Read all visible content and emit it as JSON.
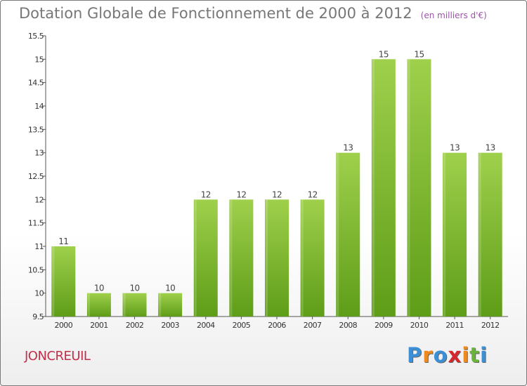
{
  "chart_data": {
    "type": "bar",
    "title": "Dotation Globale de Fonctionnement de 2000 à 2012",
    "unit": "(en milliers d'€)",
    "categories": [
      "2000",
      "2001",
      "2002",
      "2003",
      "2004",
      "2005",
      "2006",
      "2007",
      "2008",
      "2009",
      "2010",
      "2011",
      "2012"
    ],
    "values": [
      11,
      10,
      10,
      10,
      12,
      12,
      12,
      12,
      13,
      15,
      15,
      13,
      13
    ],
    "value_labels": [
      "11",
      "10",
      "10",
      "10",
      "12",
      "12",
      "12",
      "12",
      "13",
      "15",
      "15",
      "13",
      "13"
    ],
    "yticks": [
      "9.5",
      "10",
      "10.5",
      "11",
      "11.5",
      "12",
      "12.5",
      "13",
      "13.5",
      "14",
      "14.5",
      "15",
      "15.5"
    ],
    "ylim": [
      9.5,
      15.5
    ],
    "xlabel": "",
    "ylabel": "",
    "grid": false,
    "bar_color": "#8cc63f",
    "bar_color_dark": "#5a9a1a"
  },
  "footer": {
    "commune": "JONCREUIL",
    "logo_letters": [
      "P",
      "r",
      "o",
      "x",
      "i",
      "t",
      "i"
    ],
    "logo_colors": [
      "#3a8fd6",
      "#f08a1c",
      "#3a8fd6",
      "#d7262e",
      "#f08a1c",
      "#6ab43a",
      "#3a8fd6"
    ]
  }
}
